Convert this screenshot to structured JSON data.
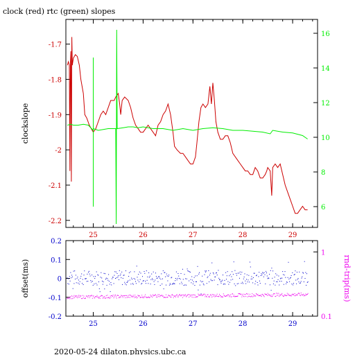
{
  "title": "clock (red) rtc (green) slopes",
  "footer": "2020-05-24 dilaton.physics.ubc.ca",
  "colors": {
    "clock": "#cc0000",
    "rtc": "#00ee00",
    "offset": "#0000cc",
    "rndtrip": "#ee00ee",
    "axis": "#000000"
  },
  "chart_data": [
    {
      "type": "line",
      "ylabel": "clockslope",
      "y2label": "",
      "xlim": [
        24.45,
        29.5
      ],
      "ylim": [
        -2.22,
        -1.63
      ],
      "y2lim": [
        4.8,
        16.8
      ],
      "xticks": [
        25,
        26,
        27,
        28,
        29
      ],
      "yticks": [
        -2.2,
        -2.1,
        -2,
        -1.9,
        -1.8,
        -1.7
      ],
      "y2ticks": [
        6,
        8,
        10,
        12,
        14,
        16
      ],
      "tick_colors": {
        "x": "#cc0000",
        "y": "#cc0000",
        "y2": "#00ee00"
      },
      "series": [
        {
          "name": "clock",
          "axis": "left",
          "color": "#cc0000",
          "points": [
            [
              24.48,
              -1.76
            ],
            [
              24.5,
              -1.75
            ],
            [
              24.52,
              -1.76
            ],
            [
              24.53,
              -2.06
            ],
            [
              24.54,
              -1.75
            ],
            [
              24.55,
              -1.72
            ],
            [
              24.56,
              -2.09
            ],
            [
              24.57,
              -1.68
            ],
            [
              24.58,
              -1.76
            ],
            [
              24.6,
              -1.74
            ],
            [
              24.64,
              -1.73
            ],
            [
              24.68,
              -1.735
            ],
            [
              24.72,
              -1.76
            ],
            [
              24.75,
              -1.8
            ],
            [
              24.8,
              -1.84
            ],
            [
              24.83,
              -1.9
            ],
            [
              24.87,
              -1.91
            ],
            [
              24.92,
              -1.93
            ],
            [
              24.96,
              -1.94
            ],
            [
              25.0,
              -1.95
            ],
            [
              25.05,
              -1.94
            ],
            [
              25.1,
              -1.92
            ],
            [
              25.15,
              -1.9
            ],
            [
              25.2,
              -1.89
            ],
            [
              25.25,
              -1.9
            ],
            [
              25.3,
              -1.88
            ],
            [
              25.35,
              -1.86
            ],
            [
              25.42,
              -1.86
            ],
            [
              25.45,
              -1.85
            ],
            [
              25.5,
              -1.84
            ],
            [
              25.53,
              -1.87
            ],
            [
              25.55,
              -1.9
            ],
            [
              25.58,
              -1.86
            ],
            [
              25.63,
              -1.85
            ],
            [
              25.7,
              -1.86
            ],
            [
              25.75,
              -1.88
            ],
            [
              25.8,
              -1.91
            ],
            [
              25.85,
              -1.93
            ],
            [
              25.9,
              -1.94
            ],
            [
              25.95,
              -1.95
            ],
            [
              26.0,
              -1.95
            ],
            [
              26.05,
              -1.94
            ],
            [
              26.1,
              -1.93
            ],
            [
              26.15,
              -1.94
            ],
            [
              26.2,
              -1.95
            ],
            [
              26.25,
              -1.96
            ],
            [
              26.3,
              -1.93
            ],
            [
              26.35,
              -1.92
            ],
            [
              26.4,
              -1.9
            ],
            [
              26.45,
              -1.89
            ],
            [
              26.5,
              -1.87
            ],
            [
              26.55,
              -1.9
            ],
            [
              26.6,
              -1.95
            ],
            [
              26.63,
              -1.99
            ],
            [
              26.68,
              -2.0
            ],
            [
              26.75,
              -2.01
            ],
            [
              26.8,
              -2.01
            ],
            [
              26.85,
              -2.02
            ],
            [
              26.9,
              -2.03
            ],
            [
              26.95,
              -2.04
            ],
            [
              27.0,
              -2.04
            ],
            [
              27.05,
              -2.02
            ],
            [
              27.08,
              -1.98
            ],
            [
              27.12,
              -1.92
            ],
            [
              27.16,
              -1.88
            ],
            [
              27.2,
              -1.87
            ],
            [
              27.25,
              -1.88
            ],
            [
              27.3,
              -1.87
            ],
            [
              27.34,
              -1.82
            ],
            [
              27.37,
              -1.87
            ],
            [
              27.4,
              -1.81
            ],
            [
              27.43,
              -1.86
            ],
            [
              27.46,
              -1.92
            ],
            [
              27.5,
              -1.95
            ],
            [
              27.55,
              -1.97
            ],
            [
              27.6,
              -1.97
            ],
            [
              27.65,
              -1.96
            ],
            [
              27.7,
              -1.96
            ],
            [
              27.75,
              -1.98
            ],
            [
              27.8,
              -2.01
            ],
            [
              27.85,
              -2.02
            ],
            [
              27.9,
              -2.03
            ],
            [
              27.95,
              -2.04
            ],
            [
              28.0,
              -2.05
            ],
            [
              28.05,
              -2.06
            ],
            [
              28.1,
              -2.06
            ],
            [
              28.15,
              -2.07
            ],
            [
              28.2,
              -2.07
            ],
            [
              28.25,
              -2.05
            ],
            [
              28.3,
              -2.06
            ],
            [
              28.35,
              -2.08
            ],
            [
              28.4,
              -2.08
            ],
            [
              28.45,
              -2.07
            ],
            [
              28.48,
              -2.06
            ],
            [
              28.5,
              -2.05
            ],
            [
              28.55,
              -2.06
            ],
            [
              28.58,
              -2.13
            ],
            [
              28.6,
              -2.05
            ],
            [
              28.65,
              -2.04
            ],
            [
              28.7,
              -2.05
            ],
            [
              28.75,
              -2.04
            ],
            [
              28.8,
              -2.07
            ],
            [
              28.85,
              -2.1
            ],
            [
              28.9,
              -2.12
            ],
            [
              28.95,
              -2.14
            ],
            [
              29.0,
              -2.16
            ],
            [
              29.05,
              -2.18
            ],
            [
              29.1,
              -2.18
            ],
            [
              29.15,
              -2.17
            ],
            [
              29.2,
              -2.16
            ],
            [
              29.25,
              -2.17
            ],
            [
              29.3,
              -2.17
            ]
          ]
        },
        {
          "name": "rtc",
          "axis": "right",
          "color": "#00ee00",
          "points": [
            [
              24.48,
              10.7
            ],
            [
              24.55,
              10.75
            ],
            [
              24.6,
              10.7
            ],
            [
              24.7,
              10.7
            ],
            [
              24.8,
              10.75
            ],
            [
              24.9,
              10.7
            ],
            [
              25.0,
              10.4
            ],
            [
              25.0,
              6.0
            ],
            [
              25.0,
              14.6
            ],
            [
              25.0,
              10.5
            ],
            [
              25.1,
              10.4
            ],
            [
              25.2,
              10.45
            ],
            [
              25.3,
              10.5
            ],
            [
              25.4,
              10.5
            ],
            [
              25.45,
              10.5
            ],
            [
              25.46,
              5.0
            ],
            [
              25.47,
              16.2
            ],
            [
              25.48,
              10.5
            ],
            [
              25.6,
              10.55
            ],
            [
              25.7,
              10.6
            ],
            [
              25.8,
              10.6
            ],
            [
              25.9,
              10.55
            ],
            [
              26.0,
              10.6
            ],
            [
              26.2,
              10.5
            ],
            [
              26.4,
              10.5
            ],
            [
              26.6,
              10.4
            ],
            [
              26.8,
              10.5
            ],
            [
              27.0,
              10.4
            ],
            [
              27.2,
              10.5
            ],
            [
              27.4,
              10.55
            ],
            [
              27.6,
              10.5
            ],
            [
              27.8,
              10.4
            ],
            [
              28.0,
              10.4
            ],
            [
              28.2,
              10.35
            ],
            [
              28.4,
              10.3
            ],
            [
              28.55,
              10.2
            ],
            [
              28.6,
              10.4
            ],
            [
              28.8,
              10.3
            ],
            [
              29.0,
              10.25
            ],
            [
              29.2,
              10.1
            ],
            [
              29.3,
              9.9
            ]
          ]
        }
      ]
    },
    {
      "type": "scatter",
      "ylabel": "offset(ms)",
      "y2label": "rnd-trip(ms)",
      "xlim": [
        24.45,
        29.5
      ],
      "ylim": [
        -0.2,
        0.2
      ],
      "y2lim": [
        0.1,
        1.5
      ],
      "y2scale": "log",
      "xticks": [
        25,
        26,
        27,
        28,
        29
      ],
      "yticks": [
        -0.2,
        -0.1,
        0,
        0.1,
        0.2
      ],
      "y2ticks": [
        0.1,
        1
      ],
      "tick_colors": {
        "x": "#0000cc",
        "y": "#0000cc",
        "y2": "#ee00ee"
      },
      "series": [
        {
          "name": "offset",
          "axis": "left",
          "color": "#0000cc",
          "xrange": [
            24.47,
            29.3
          ],
          "center": 0.005,
          "spread": 0.04
        },
        {
          "name": "rnd-trip",
          "axis": "right",
          "color": "#ee00ee",
          "xrange": [
            24.47,
            29.3
          ],
          "center_start": 0.2,
          "center_end": 0.22,
          "spread": 0.06
        }
      ]
    }
  ]
}
